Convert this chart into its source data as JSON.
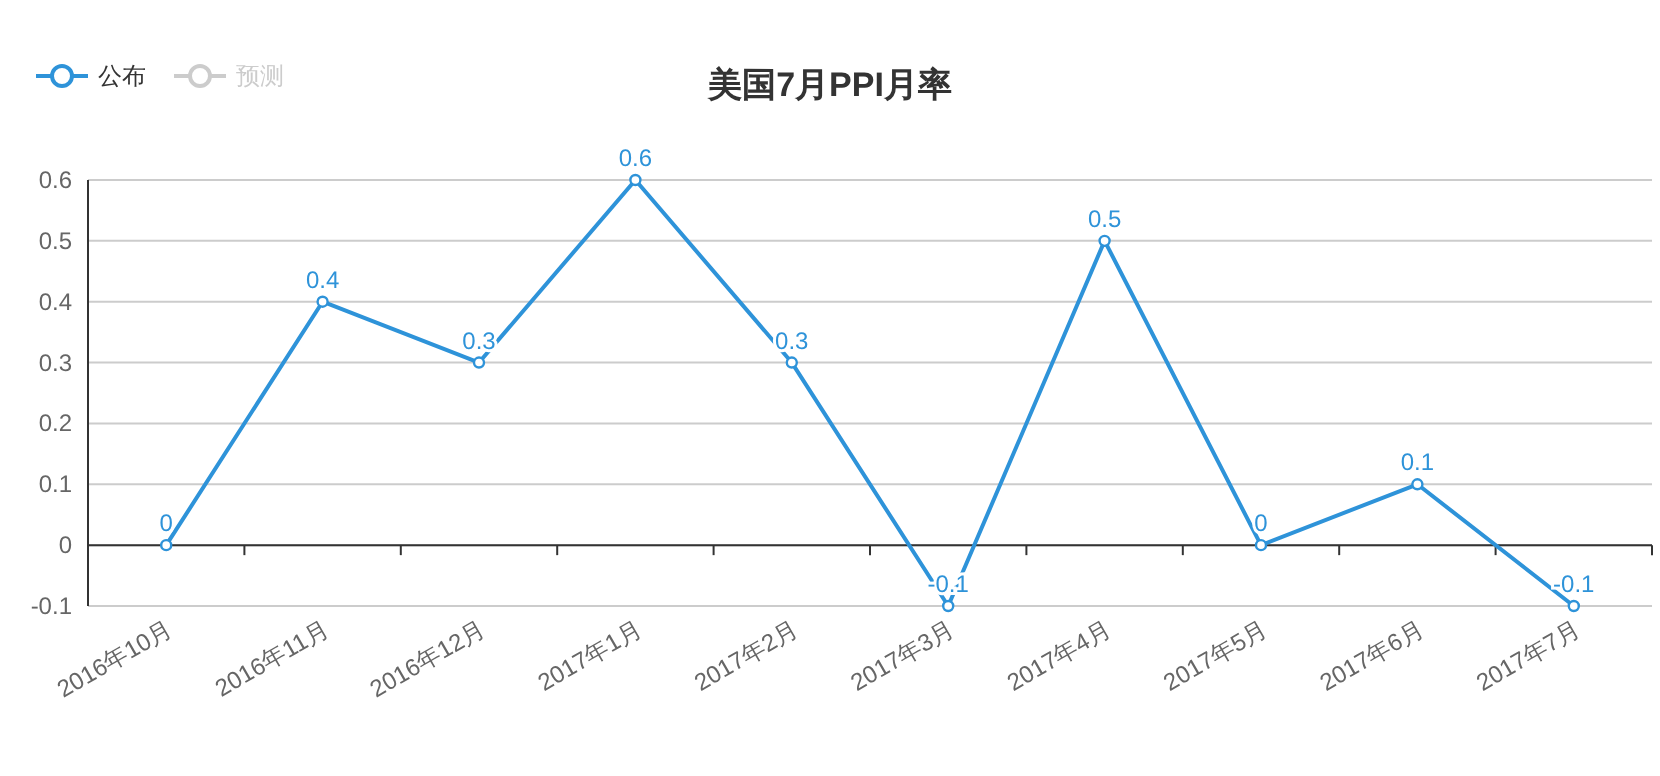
{
  "chart_data": {
    "type": "line",
    "title": "美国7月PPI月率",
    "categories": [
      "2016年10月",
      "2016年11月",
      "2016年12月",
      "2017年1月",
      "2017年2月",
      "2017年3月",
      "2017年4月",
      "2017年5月",
      "2017年6月",
      "2017年7月"
    ],
    "series": [
      {
        "name": "公布",
        "color": "#2e93d9",
        "values": [
          0,
          0.4,
          0.3,
          0.6,
          0.3,
          -0.1,
          0.5,
          0,
          0.1,
          -0.1
        ]
      },
      {
        "name": "预测",
        "color": "#cccccc",
        "values": [
          null,
          null,
          null,
          null,
          null,
          null,
          null,
          null,
          null,
          null
        ]
      }
    ],
    "ylim": [
      -0.1,
      0.6
    ],
    "yticks": [
      -0.1,
      0,
      0.1,
      0.2,
      0.3,
      0.4,
      0.5,
      0.6
    ],
    "grid": "y",
    "legend": "top left",
    "data_labels": true,
    "marker": "circle",
    "line_style": "solid"
  }
}
